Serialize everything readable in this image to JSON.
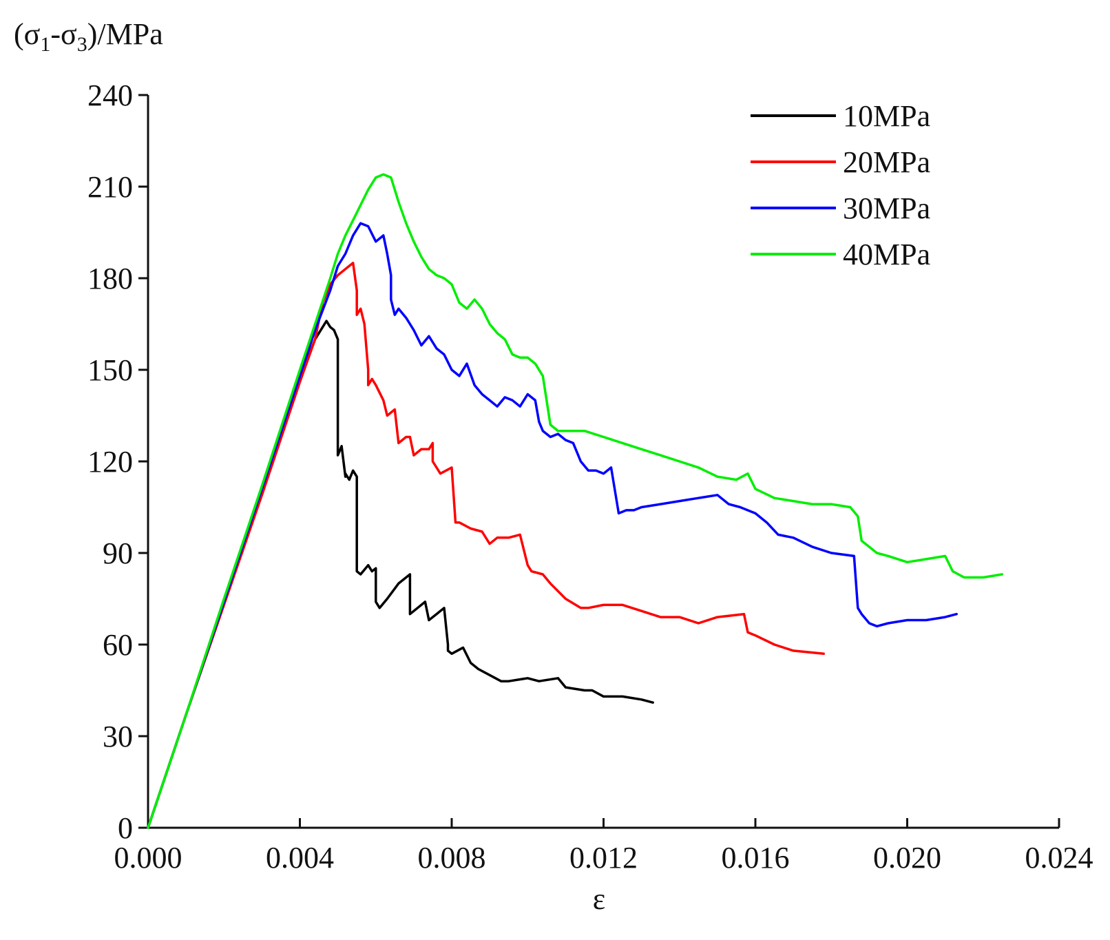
{
  "chart_data": {
    "type": "line",
    "title": "",
    "xlabel": "ε",
    "ylabel": "(σ1-σ3)/MPa",
    "ylabel_parts": {
      "open": "(σ",
      "sub1": "1",
      "dash": "-σ",
      "sub2": "3",
      "close": ")/MPa"
    },
    "xlim": [
      0,
      0.024
    ],
    "ylim": [
      0,
      240
    ],
    "x_ticks": [
      "0.000",
      "0.004",
      "0.008",
      "0.012",
      "0.016",
      "0.020",
      "0.024"
    ],
    "x_tick_values": [
      0,
      0.004,
      0.008,
      0.012,
      0.016,
      0.02,
      0.024
    ],
    "y_ticks": [
      "0",
      "30",
      "60",
      "90",
      "120",
      "150",
      "180",
      "210",
      "240"
    ],
    "y_tick_values": [
      0,
      30,
      60,
      90,
      120,
      150,
      180,
      210,
      240
    ],
    "grid": false,
    "legend_position": "top-right",
    "series": [
      {
        "name": "10MPa",
        "color": "#000000",
        "x": [
          0,
          0.001,
          0.002,
          0.003,
          0.004,
          0.0044,
          0.0046,
          0.0047,
          0.0048,
          0.0049,
          0.005,
          0.005,
          0.0051,
          0.0052,
          0.0052,
          0.0053,
          0.0054,
          0.0055,
          0.0055,
          0.0056,
          0.0058,
          0.0059,
          0.006,
          0.006,
          0.0061,
          0.0063,
          0.0066,
          0.0069,
          0.0069,
          0.0071,
          0.0073,
          0.0074,
          0.0076,
          0.0078,
          0.0079,
          0.0079,
          0.008,
          0.0083,
          0.0085,
          0.0087,
          0.009,
          0.0093,
          0.0095,
          0.01,
          0.0103,
          0.0108,
          0.011,
          0.0115,
          0.0117,
          0.012,
          0.0125,
          0.013,
          0.0133
        ],
        "values": [
          0,
          37,
          74,
          111,
          147,
          160,
          164,
          166,
          164,
          163,
          160,
          122,
          125,
          115,
          116,
          114,
          117,
          115,
          84,
          83,
          86,
          84,
          85,
          74,
          72,
          75,
          80,
          83,
          70,
          72,
          74,
          68,
          70,
          72,
          60,
          58,
          57,
          59,
          54,
          52,
          50,
          48,
          48,
          49,
          48,
          49,
          46,
          45,
          45,
          43,
          43,
          42,
          41
        ]
      },
      {
        "name": "20MPa",
        "color": "#ff0000",
        "x": [
          0,
          0.001,
          0.002,
          0.003,
          0.004,
          0.0044,
          0.0046,
          0.0048,
          0.005,
          0.0052,
          0.0054,
          0.0055,
          0.0055,
          0.0056,
          0.0057,
          0.0058,
          0.0058,
          0.0059,
          0.006,
          0.0062,
          0.0063,
          0.0065,
          0.0066,
          0.0068,
          0.0069,
          0.007,
          0.0072,
          0.0074,
          0.0075,
          0.0075,
          0.0077,
          0.008,
          0.0081,
          0.0082,
          0.0085,
          0.0088,
          0.009,
          0.0092,
          0.0095,
          0.0098,
          0.01,
          0.0101,
          0.0104,
          0.0106,
          0.011,
          0.0114,
          0.0116,
          0.012,
          0.0125,
          0.013,
          0.0135,
          0.014,
          0.0145,
          0.015,
          0.0157,
          0.0158,
          0.016,
          0.0165,
          0.017,
          0.0178
        ],
        "values": [
          0,
          37,
          73,
          109,
          146,
          160,
          172,
          178,
          181,
          183,
          185,
          176,
          168,
          170,
          165,
          150,
          145,
          147,
          145,
          140,
          135,
          137,
          126,
          128,
          128,
          122,
          124,
          124,
          126,
          120,
          116,
          118,
          100,
          100,
          98,
          97,
          93,
          95,
          95,
          96,
          86,
          84,
          83,
          80,
          75,
          72,
          72,
          73,
          73,
          71,
          69,
          69,
          67,
          69,
          70,
          64,
          63,
          60,
          58,
          57
        ]
      },
      {
        "name": "30MPa",
        "color": "#0000ff",
        "x": [
          0,
          0.001,
          0.002,
          0.003,
          0.004,
          0.0044,
          0.0048,
          0.005,
          0.0052,
          0.0054,
          0.0056,
          0.0058,
          0.006,
          0.0062,
          0.0063,
          0.0064,
          0.0064,
          0.0065,
          0.0066,
          0.0068,
          0.0069,
          0.007,
          0.0072,
          0.0074,
          0.0076,
          0.0078,
          0.008,
          0.0082,
          0.0084,
          0.0086,
          0.0088,
          0.009,
          0.0092,
          0.0094,
          0.0096,
          0.0098,
          0.01,
          0.0102,
          0.0103,
          0.0104,
          0.0106,
          0.0108,
          0.011,
          0.0112,
          0.0114,
          0.0116,
          0.0118,
          0.012,
          0.0122,
          0.0124,
          0.0126,
          0.0128,
          0.013,
          0.0135,
          0.014,
          0.0145,
          0.015,
          0.0153,
          0.0156,
          0.016,
          0.0163,
          0.0166,
          0.017,
          0.0175,
          0.018,
          0.0186,
          0.0187,
          0.0188,
          0.019,
          0.0192,
          0.0195,
          0.02,
          0.0205,
          0.021,
          0.0213
        ],
        "values": [
          0,
          37,
          74,
          111,
          148,
          163,
          176,
          184,
          188,
          194,
          198,
          197,
          192,
          194,
          188,
          181,
          173,
          168,
          170,
          167,
          165,
          163,
          158,
          161,
          157,
          155,
          150,
          148,
          152,
          145,
          142,
          140,
          138,
          141,
          140,
          138,
          142,
          140,
          133,
          130,
          128,
          129,
          127,
          126,
          120,
          117,
          117,
          116,
          118,
          103,
          104,
          104,
          105,
          106,
          107,
          108,
          109,
          106,
          105,
          103,
          100,
          96,
          95,
          92,
          90,
          89,
          72,
          70,
          67,
          66,
          67,
          68,
          68,
          69,
          70
        ]
      },
      {
        "name": "40MPa",
        "color": "#00ee00",
        "x": [
          0,
          0.001,
          0.002,
          0.003,
          0.004,
          0.0044,
          0.0048,
          0.005,
          0.0052,
          0.0054,
          0.0056,
          0.0058,
          0.006,
          0.0062,
          0.0064,
          0.0066,
          0.0068,
          0.007,
          0.0072,
          0.0074,
          0.0076,
          0.0078,
          0.008,
          0.0082,
          0.0084,
          0.0086,
          0.0088,
          0.009,
          0.0092,
          0.0094,
          0.0096,
          0.0098,
          0.01,
          0.0102,
          0.0104,
          0.0105,
          0.0106,
          0.0108,
          0.011,
          0.0115,
          0.012,
          0.0125,
          0.013,
          0.0135,
          0.014,
          0.0145,
          0.015,
          0.0155,
          0.0158,
          0.016,
          0.0165,
          0.017,
          0.0175,
          0.018,
          0.0185,
          0.0187,
          0.0188,
          0.019,
          0.0192,
          0.0195,
          0.02,
          0.0205,
          0.021,
          0.0212,
          0.0215,
          0.022,
          0.0225
        ],
        "values": [
          0,
          37,
          75,
          112,
          150,
          165,
          180,
          188,
          194,
          199,
          204,
          209,
          213,
          214,
          213,
          205,
          198,
          192,
          187,
          183,
          181,
          180,
          178,
          172,
          170,
          173,
          170,
          165,
          162,
          160,
          155,
          154,
          154,
          152,
          148,
          140,
          132,
          130,
          130,
          130,
          128,
          126,
          124,
          122,
          120,
          118,
          115,
          114,
          116,
          111,
          108,
          107,
          106,
          106,
          105,
          102,
          94,
          92,
          90,
          89,
          87,
          88,
          89,
          84,
          82,
          82,
          83
        ]
      }
    ]
  }
}
